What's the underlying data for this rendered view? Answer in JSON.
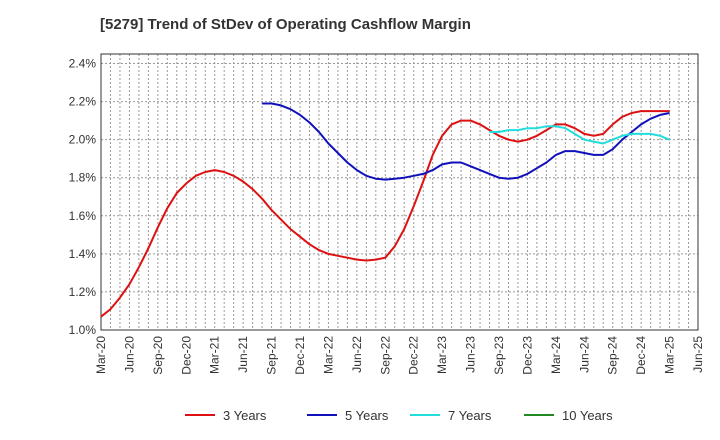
{
  "chart_data": {
    "type": "line",
    "title": "[5279]  Trend of StDev of Operating Cashflow Margin",
    "xlabel": "",
    "ylabel": "",
    "ylim": [
      1.0,
      2.45
    ],
    "yticks": [
      1.0,
      1.2,
      1.4,
      1.6,
      1.8,
      2.0,
      2.2,
      2.4
    ],
    "ytick_labels": [
      "1.0%",
      "1.2%",
      "1.4%",
      "1.6%",
      "1.8%",
      "2.0%",
      "2.2%",
      "2.4%"
    ],
    "xticks": [
      "Mar-20",
      "Jun-20",
      "Sep-20",
      "Dec-20",
      "Mar-21",
      "Jun-21",
      "Sep-21",
      "Dec-21",
      "Mar-22",
      "Jun-22",
      "Sep-22",
      "Dec-22",
      "Mar-23",
      "Jun-23",
      "Sep-23",
      "Dec-23",
      "Mar-24",
      "Jun-24",
      "Sep-24",
      "Dec-24",
      "Mar-25",
      "Jun-25"
    ],
    "grid": true,
    "legend_position": "bottom",
    "series": [
      {
        "name": "3 Years",
        "color": "#dd1111",
        "x": [
          "Mar-20",
          "Apr-20",
          "May-20",
          "Jun-20",
          "Jul-20",
          "Aug-20",
          "Sep-20",
          "Oct-20",
          "Nov-20",
          "Dec-20",
          "Jan-21",
          "Feb-21",
          "Mar-21",
          "Apr-21",
          "May-21",
          "Jun-21",
          "Jul-21",
          "Aug-21",
          "Sep-21",
          "Oct-21",
          "Nov-21",
          "Dec-21",
          "Jan-22",
          "Feb-22",
          "Mar-22",
          "Apr-22",
          "May-22",
          "Jun-22",
          "Jul-22",
          "Aug-22",
          "Sep-22",
          "Oct-22",
          "Nov-22",
          "Dec-22",
          "Jan-23",
          "Feb-23",
          "Mar-23",
          "Apr-23",
          "May-23",
          "Jun-23",
          "Jul-23",
          "Aug-23",
          "Sep-23",
          "Oct-23",
          "Nov-23",
          "Dec-23",
          "Jan-24",
          "Feb-24",
          "Mar-24",
          "Apr-24",
          "May-24",
          "Jun-24",
          "Jul-24",
          "Aug-24",
          "Sep-24",
          "Oct-24",
          "Nov-24",
          "Dec-24",
          "Jan-25",
          "Feb-25",
          "Mar-25"
        ],
        "values": [
          1.07,
          1.11,
          1.17,
          1.24,
          1.33,
          1.43,
          1.54,
          1.64,
          1.72,
          1.77,
          1.81,
          1.83,
          1.84,
          1.83,
          1.81,
          1.78,
          1.74,
          1.69,
          1.63,
          1.58,
          1.53,
          1.49,
          1.45,
          1.42,
          1.4,
          1.39,
          1.38,
          1.37,
          1.365,
          1.37,
          1.38,
          1.44,
          1.53,
          1.65,
          1.78,
          1.92,
          2.02,
          2.08,
          2.1,
          2.1,
          2.08,
          2.05,
          2.02,
          2.0,
          1.99,
          2.0,
          2.02,
          2.05,
          2.08,
          2.08,
          2.06,
          2.03,
          2.02,
          2.03,
          2.08,
          2.12,
          2.14,
          2.15,
          2.15,
          2.15,
          2.15
        ]
      },
      {
        "name": "5 Years",
        "color": "#1111bb",
        "x": [
          "Aug-21",
          "Sep-21",
          "Oct-21",
          "Nov-21",
          "Dec-21",
          "Jan-22",
          "Feb-22",
          "Mar-22",
          "Apr-22",
          "May-22",
          "Jun-22",
          "Jul-22",
          "Aug-22",
          "Sep-22",
          "Oct-22",
          "Nov-22",
          "Dec-22",
          "Jan-23",
          "Feb-23",
          "Mar-23",
          "Apr-23",
          "May-23",
          "Jun-23",
          "Jul-23",
          "Aug-23",
          "Sep-23",
          "Oct-23",
          "Nov-23",
          "Dec-23",
          "Jan-24",
          "Feb-24",
          "Mar-24",
          "Apr-24",
          "May-24",
          "Jun-24",
          "Jul-24",
          "Aug-24",
          "Sep-24",
          "Oct-24",
          "Nov-24",
          "Dec-24",
          "Jan-25",
          "Feb-25",
          "Mar-25"
        ],
        "values": [
          2.19,
          2.19,
          2.18,
          2.16,
          2.13,
          2.09,
          2.04,
          1.98,
          1.93,
          1.88,
          1.84,
          1.81,
          1.795,
          1.79,
          1.795,
          1.8,
          1.81,
          1.82,
          1.84,
          1.87,
          1.88,
          1.88,
          1.86,
          1.84,
          1.82,
          1.8,
          1.795,
          1.8,
          1.82,
          1.85,
          1.88,
          1.92,
          1.94,
          1.94,
          1.93,
          1.92,
          1.92,
          1.95,
          2.0,
          2.04,
          2.08,
          2.11,
          2.13,
          2.14
        ]
      },
      {
        "name": "7 Years",
        "color": "#22dddd",
        "x": [
          "Aug-23",
          "Sep-23",
          "Oct-23",
          "Nov-23",
          "Dec-23",
          "Jan-24",
          "Feb-24",
          "Mar-24",
          "Apr-24",
          "May-24",
          "Jun-24",
          "Jul-24",
          "Aug-24",
          "Sep-24",
          "Oct-24",
          "Nov-24",
          "Dec-24",
          "Jan-25",
          "Feb-25",
          "Mar-25"
        ],
        "values": [
          2.04,
          2.04,
          2.05,
          2.05,
          2.06,
          2.06,
          2.07,
          2.07,
          2.06,
          2.03,
          2.0,
          1.99,
          1.98,
          2.0,
          2.02,
          2.03,
          2.03,
          2.03,
          2.02,
          2.0
        ]
      },
      {
        "name": "10 Years",
        "color": "#228822",
        "x": [],
        "values": []
      }
    ]
  }
}
